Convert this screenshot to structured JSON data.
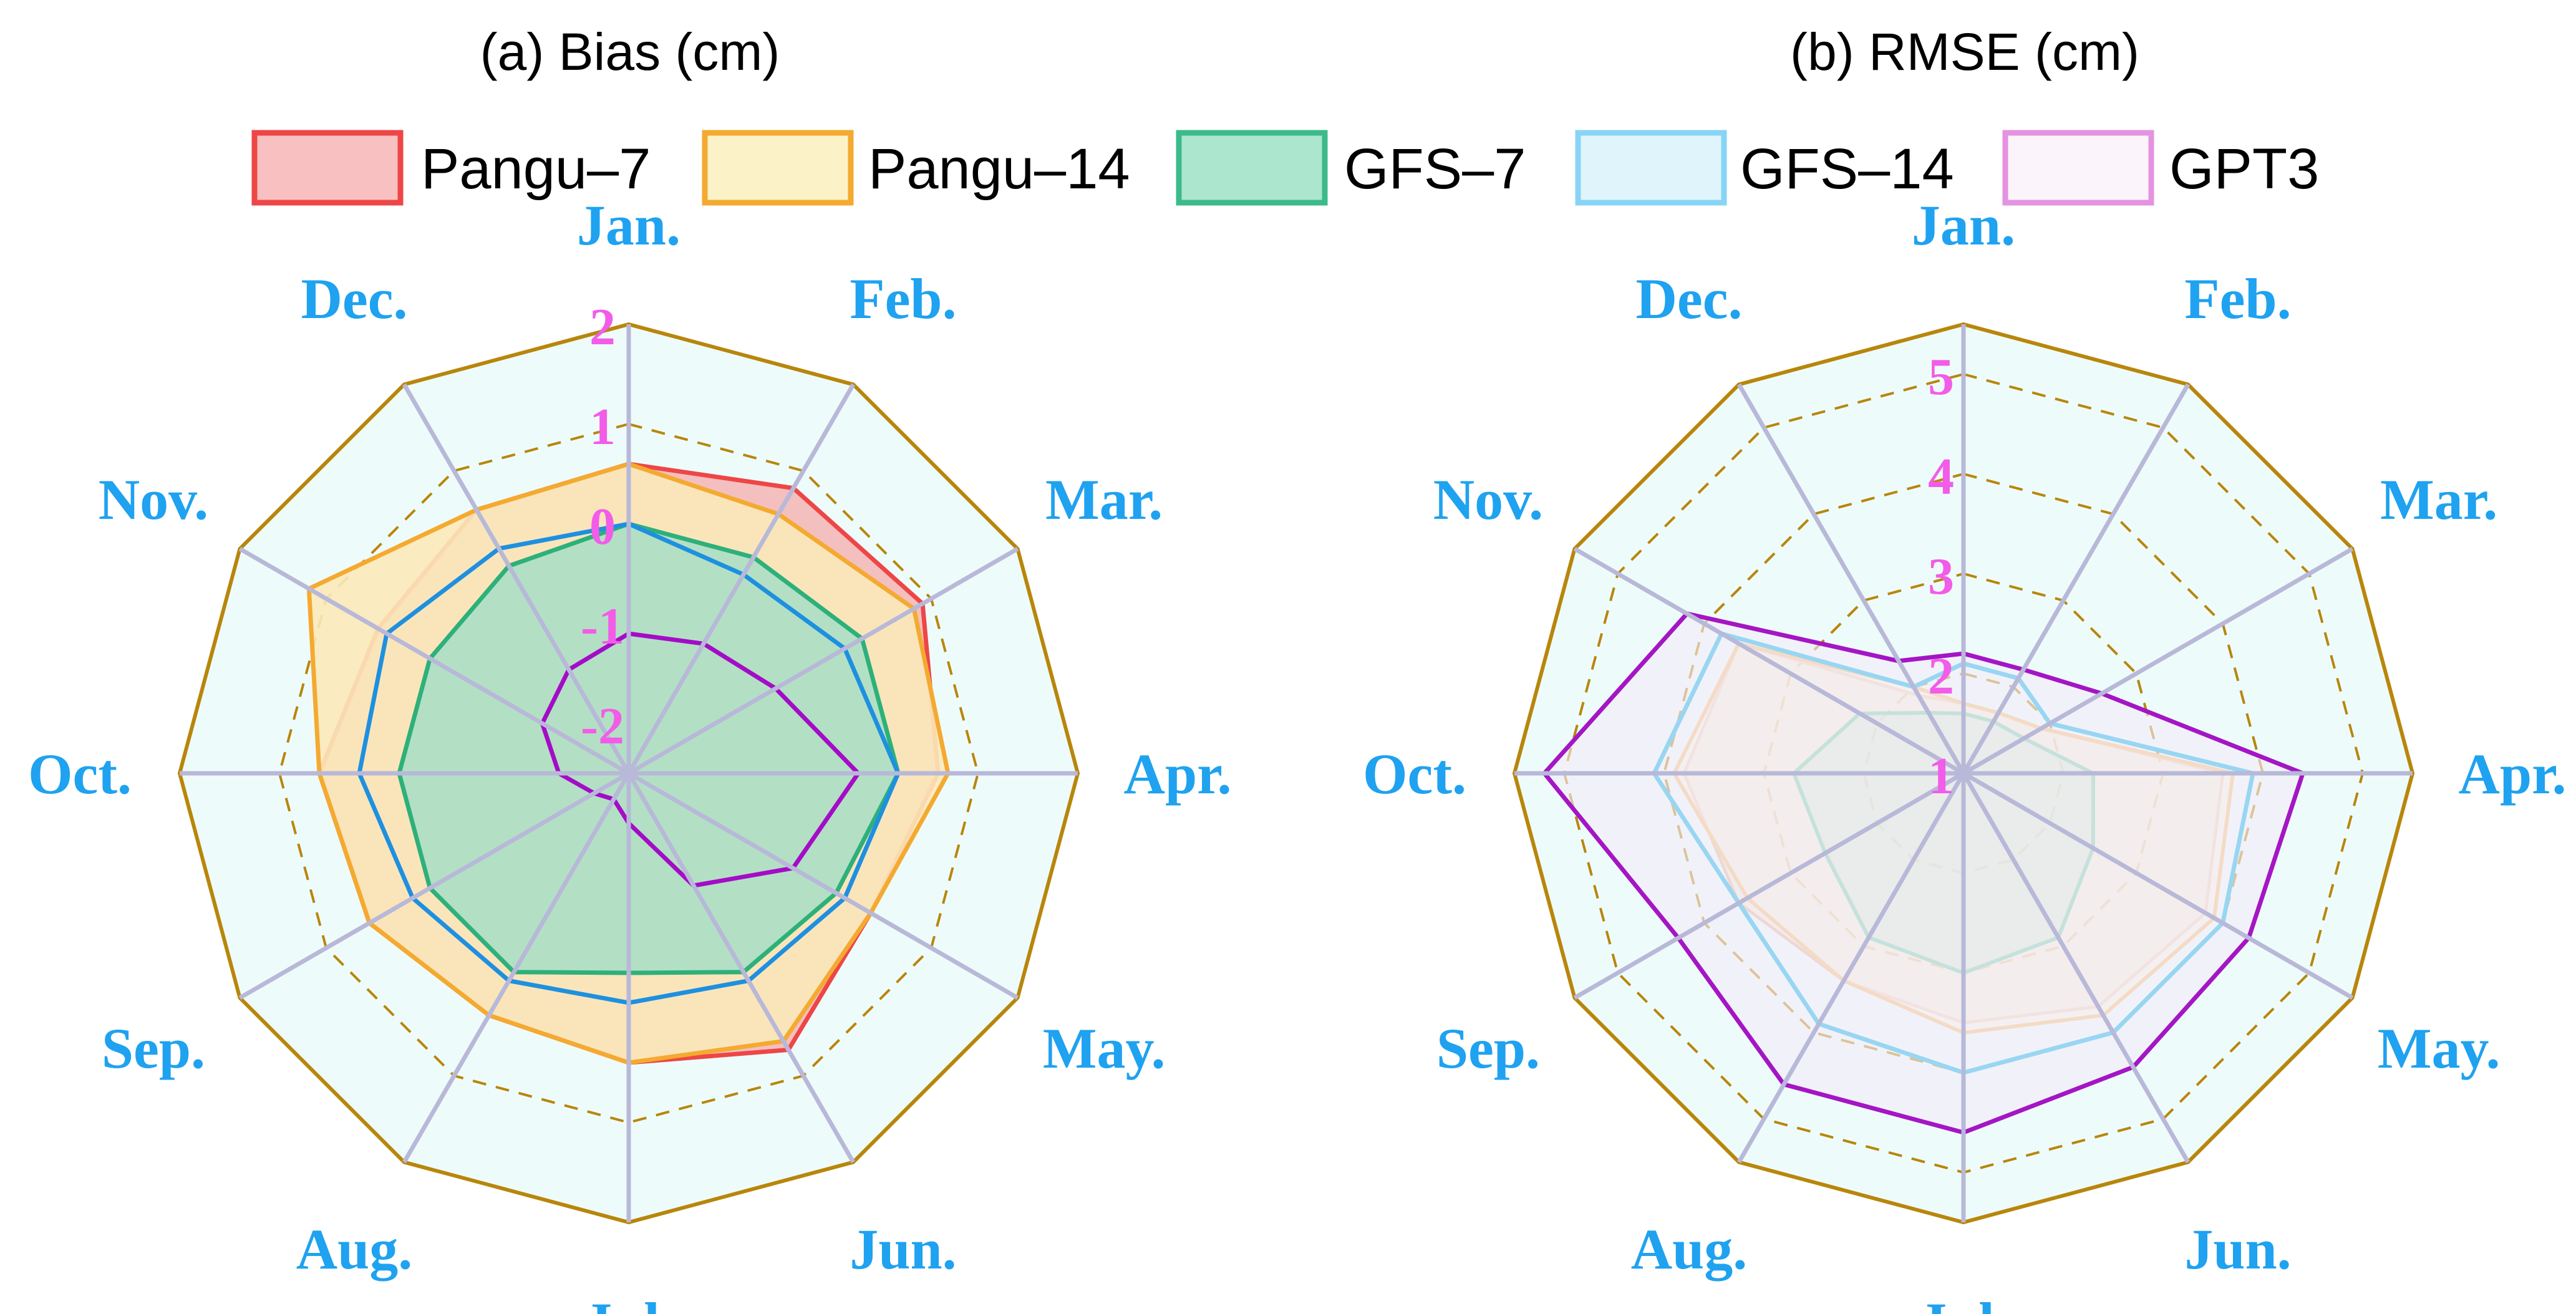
{
  "colors": {
    "month_labels": "#1fa2f0",
    "tick_labels": "#f25ce8",
    "outer_frame": "#b8860b",
    "inner_dashed": "#b8860b",
    "spokes": "#b8b8d8",
    "background_fill": "#eefbfb"
  },
  "legend": [
    {
      "label": "Pangu–7",
      "fill": "#f8c0c0",
      "stroke": "#ee4646"
    },
    {
      "label": "Pangu–14",
      "fill": "#fcf2c8",
      "stroke": "#f4aa30"
    },
    {
      "label": "GFS–7",
      "fill": "#ace6cf",
      "stroke": "#3cba8c"
    },
    {
      "label": "GFS–14",
      "fill": "#e0f4fb",
      "stroke": "#88d4f6"
    },
    {
      "label": "GPT3",
      "fill": "#fbf4fb",
      "stroke": "#e493e1"
    }
  ],
  "chart_data": [
    {
      "type": "radar",
      "title": "(a) Bias (cm)",
      "categories": [
        "Jan.",
        "Feb.",
        "Mar.",
        "Apr.",
        "May.",
        "Jun.",
        "Jul.",
        "Aug.",
        "Sep.",
        "Oct.",
        "Nov.",
        "Dec."
      ],
      "rlim": [
        -2.5,
        2
      ],
      "ticks": [
        2,
        1,
        0,
        -1,
        -2
      ],
      "tick_labels": [
        "2",
        "1",
        "0",
        "-1",
        "-2"
      ],
      "dashed_ring": 1,
      "series": [
        {
          "name": "Pangu–7",
          "fill": "#f4b4b4",
          "stroke": "#ee4646",
          "stroke_width": 7,
          "fill_opacity": 0.85,
          "values": [
            0.6,
            0.8,
            0.9,
            0.6,
            0.3,
            0.7,
            0.4,
            0.3,
            0.5,
            0.6,
            0.4,
            0.55
          ]
        },
        {
          "name": "Pangu–14",
          "fill": "#fbe9ba",
          "stroke": "#f4aa30",
          "stroke_width": 7,
          "fill_opacity": 0.9,
          "values": [
            0.6,
            0.5,
            0.8,
            0.7,
            0.3,
            0.6,
            0.4,
            0.3,
            0.5,
            0.6,
            1.2,
            0.55
          ]
        },
        {
          "name": "GFS–7",
          "fill": "#a6dfc6",
          "stroke": "#2eb07a",
          "stroke_width": 7,
          "fill_opacity": 0.85,
          "values": [
            0.0,
            0.0,
            0.2,
            0.2,
            -0.1,
            -0.2,
            -0.5,
            -0.2,
            -0.2,
            -0.2,
            -0.2,
            -0.1
          ]
        },
        {
          "name": "GFS–14",
          "fill": "none",
          "stroke": "#1e90e0",
          "stroke_width": 7,
          "fill_opacity": 0,
          "values": [
            0.0,
            -0.2,
            0.0,
            0.2,
            0.0,
            -0.1,
            -0.2,
            -0.1,
            0.0,
            0.2,
            0.3,
            0.1
          ]
        },
        {
          "name": "GPT3",
          "fill": "none",
          "stroke": "#a40cc8",
          "stroke_width": 7,
          "fill_opacity": 0,
          "values": [
            -1.1,
            -1.0,
            -0.8,
            -0.2,
            -0.6,
            -1.2,
            -2.0,
            -2.2,
            -2.1,
            -1.8,
            -1.5,
            -1.3
          ]
        }
      ]
    },
    {
      "type": "radar",
      "title": "(b) RMSE (cm)",
      "categories": [
        "Jan.",
        "Feb.",
        "Mar.",
        "Apr.",
        "May.",
        "Jun.",
        "Jul.",
        "Aug.",
        "Sep.",
        "Oct.",
        "Nov.",
        "Dec."
      ],
      "rlim": [
        1,
        5.5
      ],
      "ticks": [
        5,
        4,
        3,
        2,
        1
      ],
      "tick_labels": [
        "5",
        "4",
        "3",
        "2",
        "1"
      ],
      "dashed_ring": [
        2,
        3,
        4,
        5
      ],
      "series": [
        {
          "name": "Pangu–7",
          "fill": "#f4d9c4",
          "stroke": "#e7b7a0",
          "stroke_width": 5,
          "fill_opacity": 0.45,
          "values": [
            1.7,
            1.7,
            1.9,
            3.6,
            3.8,
            3.7,
            3.5,
            3.4,
            3.6,
            3.8,
            3.6,
            1.9
          ]
        },
        {
          "name": "Pangu–14",
          "fill": "#fbeed8",
          "stroke": "#f4c17a",
          "stroke_width": 6,
          "fill_opacity": 0.5,
          "values": [
            1.7,
            1.7,
            1.9,
            3.7,
            3.9,
            3.8,
            3.6,
            3.4,
            3.5,
            3.9,
            3.6,
            2.0
          ]
        },
        {
          "name": "GFS–7",
          "fill": "#bfe4d2",
          "stroke": "#7fcfae",
          "stroke_width": 6,
          "fill_opacity": 0.5,
          "values": [
            1.6,
            1.6,
            1.7,
            2.3,
            2.5,
            2.9,
            3.0,
            2.9,
            2.6,
            2.7,
            2.2,
            1.7
          ]
        },
        {
          "name": "GFS–14",
          "fill": "none",
          "stroke": "#10b4e8",
          "stroke_width": 7,
          "fill_opacity": 0,
          "values": [
            2.1,
            2.1,
            2.0,
            3.9,
            4.0,
            4.0,
            4.0,
            3.9,
            3.6,
            4.1,
            3.8,
            2.0
          ]
        },
        {
          "name": "GPT3",
          "fill": "#f3ecf8",
          "stroke": "#a416c4",
          "stroke_width": 7,
          "fill_opacity": 0.6,
          "values": [
            2.2,
            2.2,
            2.6,
            4.4,
            4.3,
            4.4,
            4.6,
            4.6,
            4.3,
            5.2,
            4.2,
            2.3
          ]
        }
      ]
    }
  ]
}
